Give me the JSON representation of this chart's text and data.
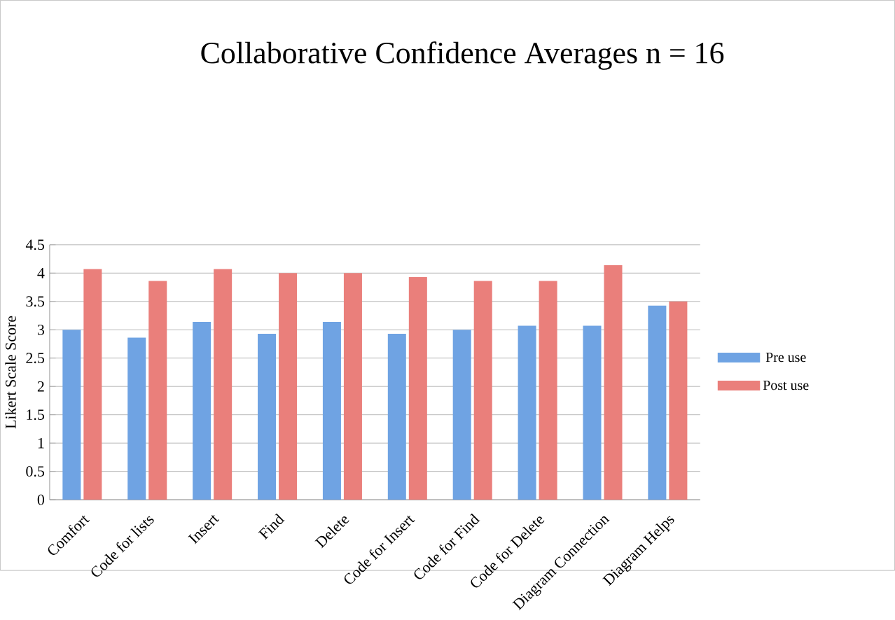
{
  "chart_data": {
    "type": "bar",
    "title": "Collaborative Confidence Averages n = 16",
    "ylabel": "Likert Scale Score",
    "categories": [
      "Comfort",
      "Code for lists",
      "Insert",
      "Find",
      "Delete",
      "Code for Insert",
      "Code for Find",
      "Code for Delete",
      "Diagram Connection",
      "Diagram Helps"
    ],
    "series": [
      {
        "name": "Pre use",
        "color": "#6fa3e3",
        "values": [
          3.0,
          2.86,
          3.14,
          2.93,
          3.14,
          2.93,
          3.0,
          3.07,
          3.07,
          3.43
        ]
      },
      {
        "name": "Post use",
        "color": "#ea7f7b",
        "values": [
          4.07,
          3.86,
          4.07,
          4.0,
          4.0,
          3.93,
          3.86,
          3.86,
          4.14,
          3.5
        ]
      }
    ],
    "ylim": [
      0,
      4.5
    ],
    "yticks": [
      0,
      0.5,
      1,
      1.5,
      2,
      2.5,
      3,
      3.5,
      4,
      4.5
    ],
    "grid": "y",
    "legend": "right"
  }
}
